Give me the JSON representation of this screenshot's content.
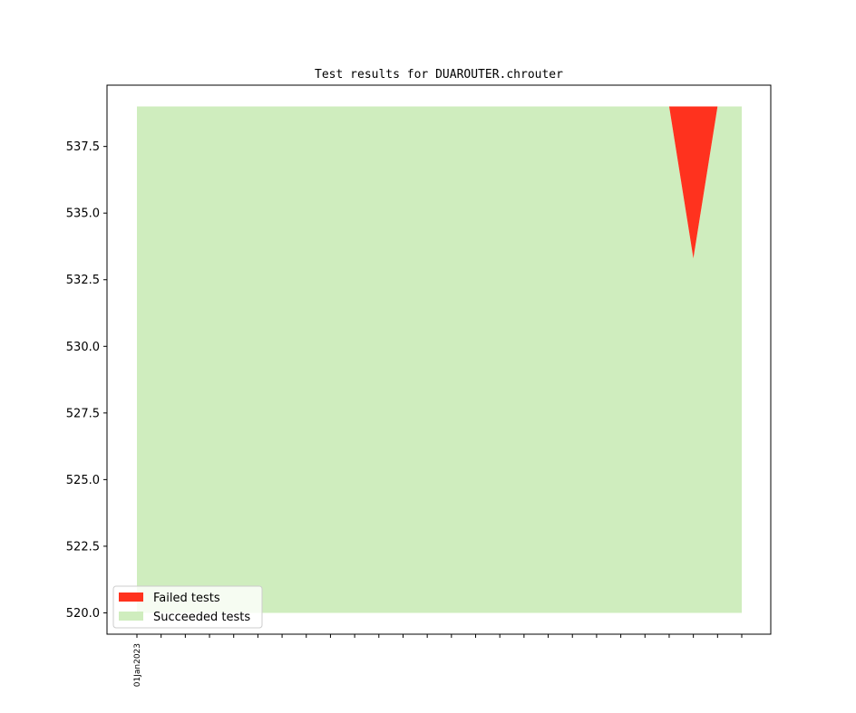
{
  "chart_data": {
    "type": "area",
    "title": "Test results for DUAROUTER.chrouter",
    "xlabel": "",
    "ylabel": "",
    "ylim": [
      519.2,
      539.8
    ],
    "yticks": [
      520.0,
      522.5,
      525.0,
      527.5,
      530.0,
      532.5,
      535.0,
      537.5
    ],
    "x_index": [
      0,
      1,
      2,
      3,
      4,
      5,
      6,
      7,
      8,
      9,
      10,
      11,
      12,
      13,
      14,
      15,
      16,
      17,
      18,
      19,
      20,
      21,
      22,
      23,
      24,
      25
    ],
    "x_tick_labels": [
      "01Jan2023",
      "",
      "",
      "",
      "",
      "",
      "",
      "",
      "",
      "",
      "",
      "",
      "",
      "",
      "",
      "",
      "",
      "",
      "",
      "",
      "",
      "",
      "",
      "",
      "",
      ""
    ],
    "series": [
      {
        "name": "Succeeded tests",
        "color": "#cfedbe",
        "values": [
          539,
          539,
          539,
          539,
          539,
          539,
          539,
          539,
          539,
          539,
          539,
          539,
          539,
          539,
          539,
          539,
          539,
          539,
          539,
          539,
          539,
          539,
          539,
          533.3,
          539,
          539
        ]
      },
      {
        "name": "Failed tests",
        "color": "#ff321e",
        "values": [
          0,
          0,
          0,
          0,
          0,
          0,
          0,
          0,
          0,
          0,
          0,
          0,
          0,
          0,
          0,
          0,
          0,
          0,
          0,
          0,
          0,
          0,
          0,
          5.7,
          0,
          0
        ]
      }
    ],
    "baseline": 520.0,
    "legend": {
      "placement": "lower-left",
      "entries": [
        {
          "label": "Failed tests",
          "color": "#ff321e"
        },
        {
          "label": "Succeeded tests",
          "color": "#cfedbe"
        }
      ]
    },
    "grid": false
  }
}
